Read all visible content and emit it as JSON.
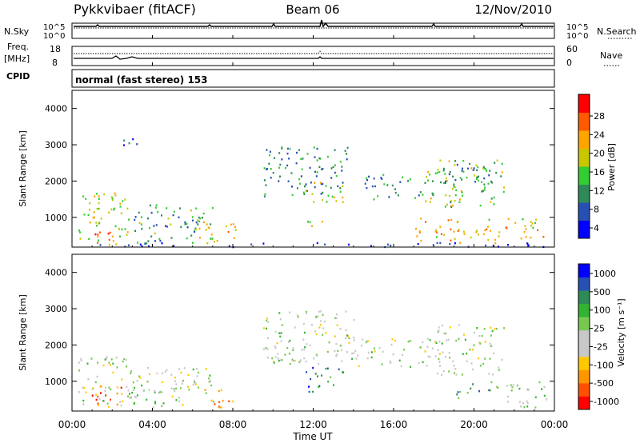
{
  "header": {
    "station": "Pykkvibaer (fitACF)",
    "beam": "Beam 06",
    "date": "12/Nov/2010"
  },
  "status_rows": {
    "nsky_label": "N.Sky",
    "nsearch_label": "N.Search",
    "freq_label_1": "Freq.",
    "freq_label_2": "[MHz]",
    "nave_label": "Nave",
    "cpid_label": "CPID",
    "cpid_value": "normal (fast stereo) 153",
    "noise_ticks": [
      "10^5",
      "10^0"
    ],
    "freq_ticks": [
      "18",
      "8"
    ],
    "nave_ticks": [
      "60",
      "0"
    ]
  },
  "x_axis": {
    "label": "Time UT",
    "ticks": [
      "00:00",
      "04:00",
      "08:00",
      "12:00",
      "16:00",
      "20:00",
      "00:00"
    ]
  },
  "chart_data": [
    {
      "type": "heatmap",
      "panel": "power",
      "ylabel": "Slant Range [km]",
      "colorbar_label": "Power [dB]",
      "colorbar_ticks": [
        "28",
        "24",
        "20",
        "16",
        "12",
        "8",
        "4"
      ],
      "colorscale": [
        "#0000ff",
        "#2850b4",
        "#2e8b57",
        "#32cd32",
        "#c8c800",
        "#ffa500",
        "#ff5a00",
        "#ff0000"
      ],
      "xlim": [
        0,
        24
      ],
      "ylim": [
        180,
        4500
      ],
      "y_ticks": [
        1000,
        2000,
        3000,
        4000
      ],
      "regions": [
        {
          "t0": 0.3,
          "t1": 2.8,
          "r0": 250,
          "r1": 1700,
          "v": 0.55
        },
        {
          "t0": 0.3,
          "t1": 2.2,
          "r0": 300,
          "r1": 700,
          "v": 0.85
        },
        {
          "t0": 1.8,
          "t1": 3.3,
          "r0": 2900,
          "r1": 3250,
          "v": 0.2
        },
        {
          "t0": 3.0,
          "t1": 7.0,
          "r0": 300,
          "r1": 1400,
          "v": 0.35
        },
        {
          "t0": 6.2,
          "t1": 8.2,
          "r0": 300,
          "r1": 900,
          "v": 0.6
        },
        {
          "t0": 9.5,
          "t1": 13.8,
          "r0": 1600,
          "r1": 3000,
          "v": 0.3
        },
        {
          "t0": 11.5,
          "t1": 13.6,
          "r0": 1400,
          "r1": 2000,
          "v": 0.55
        },
        {
          "t0": 11.0,
          "t1": 12.5,
          "r0": 700,
          "r1": 1000,
          "v": 0.6
        },
        {
          "t0": 14.5,
          "t1": 18.0,
          "r0": 1500,
          "r1": 2200,
          "v": 0.3
        },
        {
          "t0": 17.5,
          "t1": 21.5,
          "r0": 1300,
          "r1": 2600,
          "v": 0.5
        },
        {
          "t0": 17.0,
          "t1": 23.5,
          "r0": 300,
          "r1": 1000,
          "v": 0.65
        },
        {
          "t0": 18.2,
          "t1": 21.2,
          "r0": 1900,
          "r1": 2500,
          "v": 0.3
        },
        {
          "t0": 0.0,
          "t1": 23.8,
          "r0": 200,
          "r1": 320,
          "v": 0.05
        }
      ]
    },
    {
      "type": "heatmap",
      "panel": "velocity",
      "ylabel": "Slant Range [km]",
      "colorbar_label": "Velocity [m s⁻¹]",
      "colorbar_ticks": [
        "1000",
        "500",
        "100",
        "25",
        "-25",
        "-100",
        "-500",
        "-1000"
      ],
      "colorscale": [
        "#ff0000",
        "#ff5000",
        "#ff9600",
        "#ffc800",
        "#c8c8c8",
        "#c8c8c8",
        "#78c850",
        "#32b432",
        "#2e8b57",
        "#2850b4",
        "#0000ff"
      ],
      "xlim": [
        0,
        24
      ],
      "ylim": [
        180,
        4500
      ],
      "y_ticks": [
        1000,
        2000,
        3000,
        4000
      ],
      "regions": [
        {
          "t0": 0.3,
          "t1": 3.0,
          "r0": 300,
          "r1": 1700,
          "v": 0.5
        },
        {
          "t0": 0.5,
          "t1": 2.5,
          "r0": 300,
          "r1": 900,
          "v": 0.2
        },
        {
          "t0": 3.0,
          "t1": 7.0,
          "r0": 300,
          "r1": 1400,
          "v": 0.5
        },
        {
          "t0": 6.5,
          "t1": 8.0,
          "r0": 300,
          "r1": 800,
          "v": 0.25
        },
        {
          "t0": 9.5,
          "t1": 14.0,
          "r0": 1500,
          "r1": 3000,
          "v": 0.5
        },
        {
          "t0": 11.5,
          "t1": 13.5,
          "r0": 700,
          "r1": 1400,
          "v": 0.78
        },
        {
          "t0": 14.0,
          "t1": 18.5,
          "r0": 1400,
          "r1": 2200,
          "v": 0.5
        },
        {
          "t0": 18.0,
          "t1": 21.5,
          "r0": 1200,
          "r1": 2600,
          "v": 0.5
        },
        {
          "t0": 19.0,
          "t1": 21.5,
          "r0": 500,
          "r1": 1000,
          "v": 0.72
        },
        {
          "t0": 21.5,
          "t1": 23.6,
          "r0": 300,
          "r1": 1000,
          "v": 0.55
        }
      ]
    }
  ]
}
